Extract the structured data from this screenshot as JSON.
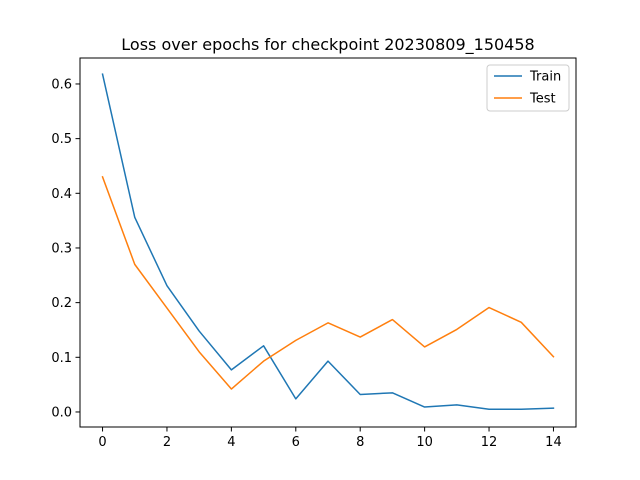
{
  "chart_data": {
    "type": "line",
    "title": "Loss over epochs for checkpoint 20230809_150458",
    "xlabel": "",
    "ylabel": "",
    "x": [
      0,
      1,
      2,
      3,
      4,
      5,
      6,
      7,
      8,
      9,
      10,
      11,
      12,
      13,
      14
    ],
    "xticks": [
      0,
      2,
      4,
      6,
      8,
      10,
      12,
      14
    ],
    "yticks": [
      0.0,
      0.1,
      0.2,
      0.3,
      0.4,
      0.5,
      0.6
    ],
    "ytick_labels": [
      "0.0",
      "0.1",
      "0.2",
      "0.3",
      "0.4",
      "0.5",
      "0.6"
    ],
    "xlim": [
      -0.7,
      14.7
    ],
    "ylim": [
      -0.0275,
      0.6475
    ],
    "grid": false,
    "legend": "top-right",
    "series": [
      {
        "name": "Train",
        "color": "#1f77b4",
        "values": [
          0.618,
          0.356,
          0.231,
          0.148,
          0.077,
          0.121,
          0.024,
          0.093,
          0.032,
          0.035,
          0.009,
          0.013,
          0.005,
          0.005,
          0.007
        ]
      },
      {
        "name": "Test",
        "color": "#ff7f0e",
        "values": [
          0.43,
          0.27,
          0.19,
          0.11,
          0.042,
          0.093,
          0.131,
          0.163,
          0.137,
          0.169,
          0.119,
          0.151,
          0.191,
          0.164,
          0.101
        ]
      }
    ]
  }
}
